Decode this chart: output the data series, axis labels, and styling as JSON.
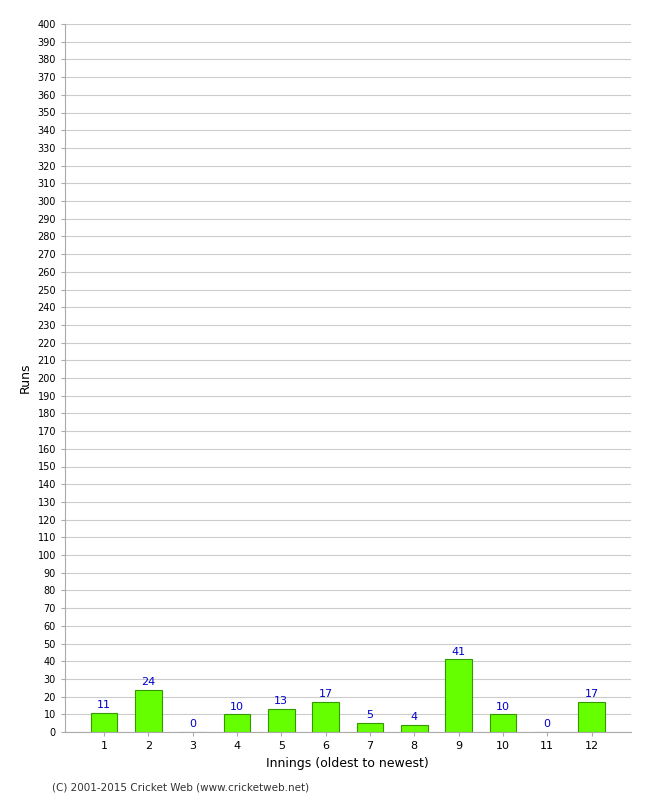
{
  "xlabel": "Innings (oldest to newest)",
  "ylabel": "Runs",
  "categories": [
    1,
    2,
    3,
    4,
    5,
    6,
    7,
    8,
    9,
    10,
    11,
    12
  ],
  "values": [
    11,
    24,
    0,
    10,
    13,
    17,
    5,
    4,
    41,
    10,
    0,
    17
  ],
  "bar_color": "#66ff00",
  "bar_edge_color": "#339900",
  "label_color": "#0000cc",
  "ylim": [
    0,
    400
  ],
  "background_color": "#ffffff",
  "grid_color": "#cccccc",
  "footer": "(C) 2001-2015 Cricket Web (www.cricketweb.net)"
}
